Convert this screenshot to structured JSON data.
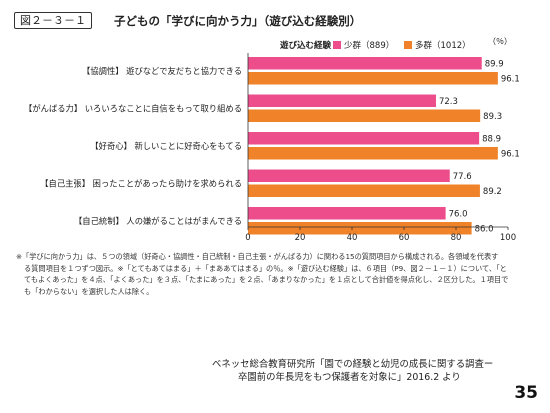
{
  "figure": {
    "number": "図２－３－１",
    "title": "子どもの「学びに向かう力」（遊び込む経験別）"
  },
  "chart_data": {
    "type": "bar",
    "orientation": "horizontal",
    "categories": [
      "【協調性】 遊びなどで友だちと協力できる",
      "【がんばる力】 いろいろなことに自信をもって取り組める",
      "【好奇心】 新しいことに好奇心をもてる",
      "【自己主張】 困ったことがあったら助けを求められる",
      "【自己統制】 人の嫌がることはがまんできる"
    ],
    "series": [
      {
        "name": "少群（889）",
        "values": [
          89.9,
          72.3,
          88.9,
          77.6,
          76.0
        ],
        "color": "#ee4d8c"
      },
      {
        "name": "多群（1012）",
        "values": [
          96.1,
          89.3,
          96.1,
          89.2,
          86.0
        ],
        "color": "#f0832a"
      }
    ],
    "value_labels": [
      [
        "89.9",
        "72.3",
        "88.9",
        "77.6",
        "76.0"
      ],
      [
        "96.1",
        "89.3",
        "96.1",
        "89.2",
        "86.0"
      ]
    ],
    "legend_title": "遊び込む経験",
    "legend_position": "top-right",
    "unit": "（％）",
    "xlim": [
      0,
      100
    ],
    "ticks": [
      "0",
      "20",
      "40",
      "60",
      "80",
      "100"
    ],
    "tick_values": [
      0,
      20,
      40,
      60,
      80,
      100
    ],
    "grid": false
  },
  "note": {
    "line1": "※「学びに向かう力」は、５つの領域（好奇心・協調性・自己統制・自己主張・がんばる力）に関わる15の質問項目から構成される。各領域を代表す",
    "line2": "る質問項目を１つずつ図示。※「とてもあてはまる」＋「まああてはまる」の％。※「遊び込む経験」は、６項目（P9、図２－１－１）について、「と",
    "line3": "てもよくあった」を４点、「よくあった」を３点、「たまにあった」を２点、「あまりなかった」を１点として合計値を得点化し、２区分した。１項目で",
    "line4": "も「わからない」を選択した人は除く。"
  },
  "source": {
    "line1": "ベネッセ総合教育研究所「園での経験と幼児の成長に関する調査ー",
    "line2": "卒園前の年長児をもつ保護者を対象に」2016.2 より"
  },
  "page_number": "35"
}
